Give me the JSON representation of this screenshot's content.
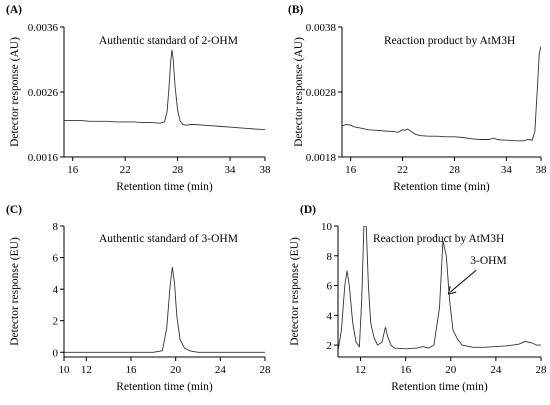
{
  "chart_data": [
    {
      "panel": "(A)",
      "type": "line",
      "title": "Authentic standard of 2-OHM",
      "xlabel": "Retention time (min)",
      "ylabel": "Detector response (AU)",
      "xlim": [
        15,
        38
      ],
      "ylim": [
        0.0016,
        0.0036
      ],
      "xticks": [
        "16",
        "22",
        "28",
        "34",
        "38"
      ],
      "yticks": [
        "0.0016",
        "0.0026",
        "0.0036"
      ],
      "series": [
        {
          "x": [
            15,
            16,
            17,
            18,
            19,
            20,
            21,
            22,
            23,
            24,
            25,
            26,
            26.5,
            26.8,
            27,
            27.2,
            27.35,
            27.5,
            27.7,
            28,
            28.3,
            28.6,
            29,
            29.5,
            30,
            31,
            32,
            33,
            34,
            35,
            36,
            37,
            38
          ],
          "y": [
            0.00216,
            0.00216,
            0.00216,
            0.00215,
            0.00215,
            0.00215,
            0.00214,
            0.00214,
            0.00214,
            0.00213,
            0.00213,
            0.00212,
            0.00214,
            0.0023,
            0.00265,
            0.00305,
            0.00325,
            0.0031,
            0.0027,
            0.00232,
            0.00215,
            0.0021,
            0.00209,
            0.0021,
            0.0021,
            0.00209,
            0.00208,
            0.00207,
            0.00206,
            0.00205,
            0.00204,
            0.00203,
            0.00202
          ]
        }
      ]
    },
    {
      "panel": "(B)",
      "type": "line",
      "title": "Reaction product by AtM3H",
      "xlabel": "Retention time (min)",
      "ylabel": "Detector response (AU)",
      "xlim": [
        15,
        38
      ],
      "ylim": [
        0.0018,
        0.0038
      ],
      "xticks": [
        "16",
        "22",
        "28",
        "34",
        "38"
      ],
      "yticks": [
        "0.0018",
        "0.0028",
        "0.0038"
      ],
      "series": [
        {
          "x": [
            15,
            15.5,
            16,
            16.5,
            17,
            18,
            19,
            20,
            21,
            21.5,
            22,
            22.3,
            22.6,
            23,
            23.5,
            24,
            25,
            26,
            27,
            28,
            29,
            30,
            31,
            32,
            32.5,
            33,
            33.5,
            34,
            35,
            36,
            36.5,
            37,
            37.3,
            37.6,
            37.8,
            38
          ],
          "y": [
            0.00228,
            0.0023,
            0.00229,
            0.00226,
            0.00225,
            0.00222,
            0.00221,
            0.0022,
            0.00219,
            0.00218,
            0.00222,
            0.00221,
            0.00223,
            0.00219,
            0.00215,
            0.00213,
            0.00212,
            0.00212,
            0.00211,
            0.00211,
            0.0021,
            0.00208,
            0.00207,
            0.00207,
            0.00209,
            0.00207,
            0.00206,
            0.00206,
            0.00205,
            0.00205,
            0.00207,
            0.00206,
            0.0022,
            0.0029,
            0.0034,
            0.0035
          ]
        }
      ]
    },
    {
      "panel": "(C)",
      "type": "line",
      "title": "Authentic standard of 3-OHM",
      "xlabel": "Retention time (min)",
      "ylabel": "Detector response (EU)",
      "xlim": [
        10,
        28
      ],
      "ylim": [
        -0.3,
        8
      ],
      "xticks": [
        "10",
        "12",
        "16",
        "20",
        "24",
        "28"
      ],
      "yticks": [
        "0",
        "2",
        "4",
        "6",
        "8"
      ],
      "series": [
        {
          "x": [
            10,
            11,
            12,
            13,
            14,
            15,
            16,
            17,
            18,
            18.8,
            19.2,
            19.5,
            19.7,
            19.9,
            20.1,
            20.4,
            20.8,
            21.3,
            22,
            23,
            24,
            25,
            26,
            27,
            28
          ],
          "y": [
            0,
            0,
            0,
            0,
            0,
            0,
            0,
            0,
            0,
            0.1,
            1.5,
            4.2,
            5.4,
            4.4,
            2.3,
            0.8,
            0.25,
            0.08,
            0,
            0,
            0,
            0,
            0,
            0,
            0
          ]
        }
      ]
    },
    {
      "panel": "(D)",
      "type": "line",
      "title": "Reaction product by AtM3H",
      "xlabel": "Retention time (min)",
      "ylabel": "Detector response (EU)",
      "xlim": [
        10,
        28
      ],
      "ylim": [
        1.2,
        10
      ],
      "xticks": [
        "12",
        "16",
        "20",
        "24",
        "28"
      ],
      "yticks": [
        "2",
        "4",
        "6",
        "8",
        "10"
      ],
      "annotation": "3-OHM",
      "annotation_at": [
        19.6,
        6.5
      ],
      "series": [
        {
          "x": [
            10,
            10.3,
            10.6,
            10.8,
            11,
            11.3,
            11.6,
            11.9,
            12.1,
            12.3,
            12.5,
            12.7,
            12.9,
            13.2,
            13.5,
            13.9,
            14.2,
            14.4,
            14.7,
            15,
            16,
            17,
            17.5,
            18,
            18.5,
            19,
            19.3,
            19.6,
            19.9,
            20.2,
            20.6,
            21,
            22,
            23,
            24,
            25,
            26,
            26.6,
            27.2,
            27.6,
            28
          ],
          "y": [
            1.6,
            3,
            6,
            7,
            6,
            3.5,
            2.2,
            1.9,
            5,
            10,
            10,
            6,
            3.5,
            2.5,
            2,
            2.2,
            3.2,
            2.6,
            2,
            1.8,
            1.75,
            1.8,
            1.9,
            1.8,
            2,
            4.5,
            9,
            8,
            5,
            3,
            2.4,
            2,
            1.85,
            1.85,
            1.9,
            1.95,
            2.05,
            2.25,
            2.15,
            2,
            2
          ]
        }
      ]
    }
  ]
}
